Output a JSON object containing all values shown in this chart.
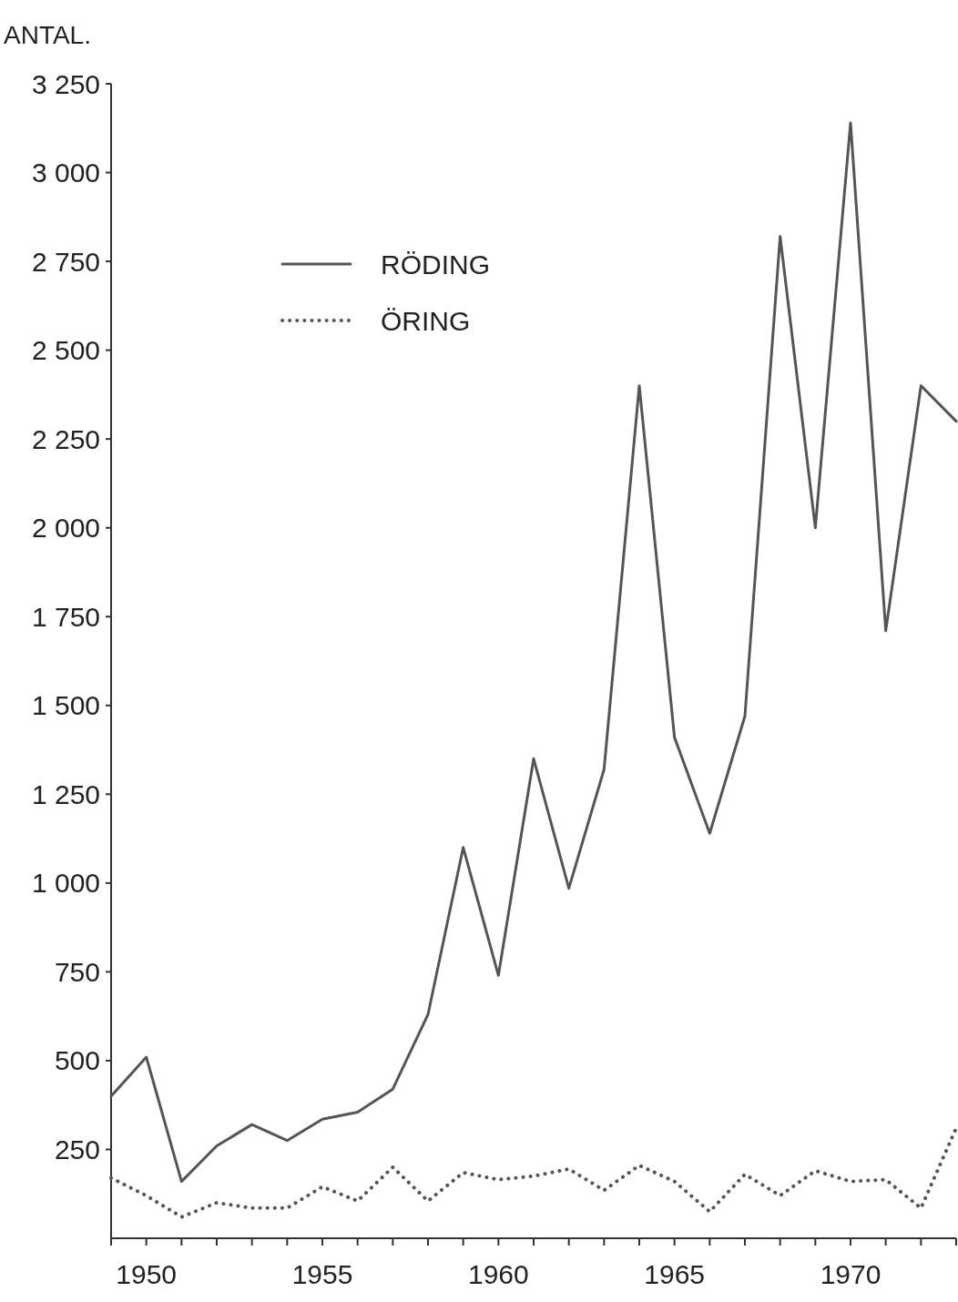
{
  "chart_data": {
    "type": "line",
    "ylabel": "ANTAL.",
    "x": [
      1949,
      1950,
      1951,
      1952,
      1953,
      1954,
      1955,
      1956,
      1957,
      1958,
      1959,
      1960,
      1961,
      1962,
      1963,
      1964,
      1965,
      1966,
      1967,
      1968,
      1969,
      1970,
      1971,
      1972,
      1973
    ],
    "series": [
      {
        "name": "RÖDING",
        "color": "#555555",
        "line_style": "solid",
        "values": [
          400,
          510,
          160,
          260,
          320,
          275,
          335,
          355,
          420,
          630,
          1100,
          740,
          1350,
          985,
          1320,
          2400,
          1410,
          1140,
          1470,
          2820,
          2000,
          3140,
          1710,
          2400,
          2300
        ]
      },
      {
        "name": "ÖRING",
        "color": "#555555",
        "line_style": "dotted",
        "values": [
          170,
          120,
          60,
          100,
          85,
          85,
          145,
          105,
          200,
          105,
          185,
          165,
          175,
          195,
          135,
          205,
          160,
          75,
          180,
          120,
          190,
          160,
          165,
          85,
          310
        ]
      }
    ],
    "xlim": [
      1949,
      1973
    ],
    "xticks": [
      {
        "value": 1949,
        "label": null
      },
      1950,
      {
        "value": 1951,
        "label": null
      },
      {
        "value": 1952,
        "label": null
      },
      {
        "value": 1953,
        "label": null
      },
      {
        "value": 1954,
        "label": null
      },
      1955,
      {
        "value": 1956,
        "label": null
      },
      {
        "value": 1957,
        "label": null
      },
      {
        "value": 1958,
        "label": null
      },
      {
        "value": 1959,
        "label": null
      },
      1960,
      {
        "value": 1961,
        "label": null
      },
      {
        "value": 1962,
        "label": null
      },
      {
        "value": 1963,
        "label": null
      },
      {
        "value": 1964,
        "label": null
      },
      1965,
      {
        "value": 1966,
        "label": null
      },
      {
        "value": 1967,
        "label": null
      },
      {
        "value": 1968,
        "label": null
      },
      {
        "value": 1969,
        "label": null
      },
      1970,
      {
        "value": 1971,
        "label": null
      },
      {
        "value": 1972,
        "label": null
      },
      {
        "value": 1973,
        "label": null
      }
    ],
    "ylim": [
      0,
      3250
    ],
    "yticks": [
      {
        "value": 250,
        "label": "250"
      },
      {
        "value": 500,
        "label": "500"
      },
      {
        "value": 750,
        "label": "750"
      },
      {
        "value": 1000,
        "label": "1 000"
      },
      {
        "value": 1250,
        "label": "1 250"
      },
      {
        "value": 1500,
        "label": "1 500"
      },
      {
        "value": 1750,
        "label": "1 750"
      },
      {
        "value": 2000,
        "label": "2 000"
      },
      {
        "value": 2250,
        "label": "2 250"
      },
      {
        "value": 2500,
        "label": "2 500"
      },
      {
        "value": 2750,
        "label": "2 750"
      },
      {
        "value": 3000,
        "label": "3 000"
      },
      {
        "value": 3250,
        "label": "3 250"
      }
    ],
    "legend": "top left",
    "grid": false
  }
}
